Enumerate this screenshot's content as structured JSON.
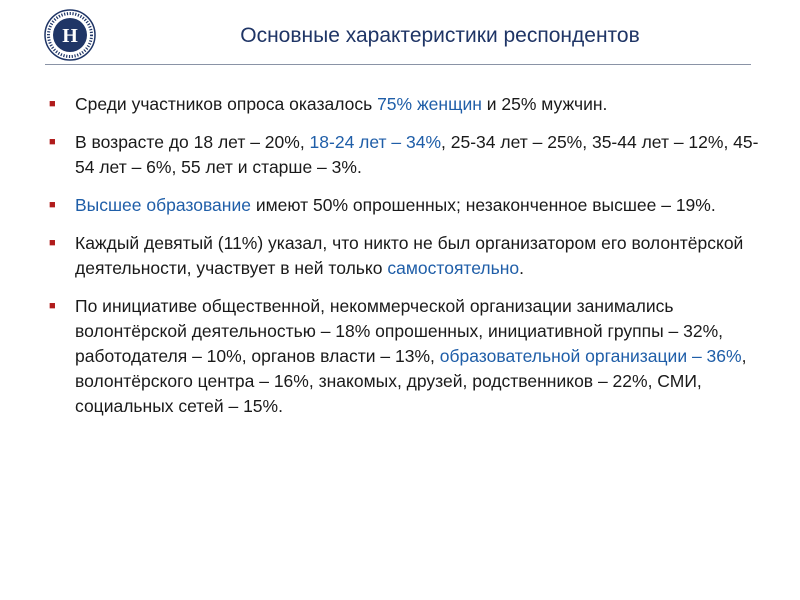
{
  "logo": {
    "icon": "hse-university-emblem",
    "glyph": "Н"
  },
  "title": "Основные характеристики респондентов",
  "colors": {
    "title": "#1f3566",
    "highlight": "#1f5ea8",
    "bullet": "#b01b1b",
    "text": "#1a1a1a"
  },
  "bullet_glyph": "■",
  "items": [
    {
      "segments": [
        {
          "text": "Среди участников опроса оказалось ",
          "hl": false
        },
        {
          "text": "75% женщин",
          "hl": true
        },
        {
          "text": " и 25% мужчин.",
          "hl": false
        }
      ]
    },
    {
      "segments": [
        {
          "text": "В возрасте до 18 лет – 20%, ",
          "hl": false
        },
        {
          "text": "18-24 лет – 34%",
          "hl": true
        },
        {
          "text": ", 25-34 лет – 25%, 35-44 лет – 12%, 45-54 лет – 6%, 55 лет и старше – 3%.",
          "hl": false
        }
      ]
    },
    {
      "segments": [
        {
          "text": "Высшее образование",
          "hl": true
        },
        {
          "text": " имеют 50% опрошенных; незаконченное высшее – 19%.",
          "hl": false
        }
      ]
    },
    {
      "segments": [
        {
          "text": "Каждый девятый (11%) указал, что никто не был организатором его волонтёрской деятельности, участвует в ней только ",
          "hl": false
        },
        {
          "text": "самостоятельно",
          "hl": true
        },
        {
          "text": ".",
          "hl": false
        }
      ]
    },
    {
      "segments": [
        {
          "text": "По инициативе общественной, некоммерческой организации занимались волонтёрской деятельностью – 18% опрошенных, инициативной группы – 32%, работодателя – 10%, органов власти – 13%, ",
          "hl": false
        },
        {
          "text": "образовательной организации – 36%",
          "hl": true
        },
        {
          "text": ", волонтёрского центра – 16%, знакомых, друзей, родственников – 22%, СМИ, социальных сетей – 15%.",
          "hl": false
        }
      ]
    }
  ]
}
